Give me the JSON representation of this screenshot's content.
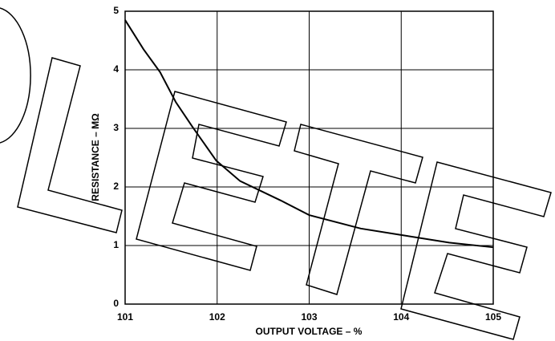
{
  "chart_data": {
    "type": "line",
    "x_label": "OUTPUT VOLTAGE – %",
    "y_label": "RESISTANCE – MΩ",
    "x": [
      101.0,
      101.2,
      101.38,
      101.55,
      101.73,
      101.99,
      102.25,
      102.69,
      103.0,
      103.56,
      104.0,
      104.52,
      105.0
    ],
    "series": [
      {
        "name": "Resistance",
        "color": "#000000",
        "values": [
          4.85,
          4.35,
          3.96,
          3.45,
          3.03,
          2.45,
          2.1,
          1.77,
          1.52,
          1.29,
          1.18,
          1.05,
          0.97
        ]
      }
    ],
    "xlim": [
      101,
      105
    ],
    "ylim": [
      0,
      5
    ],
    "xticks": [
      101,
      102,
      103,
      104,
      105
    ],
    "yticks": [
      0,
      1,
      2,
      3,
      4,
      5
    ],
    "grid": true
  }
}
